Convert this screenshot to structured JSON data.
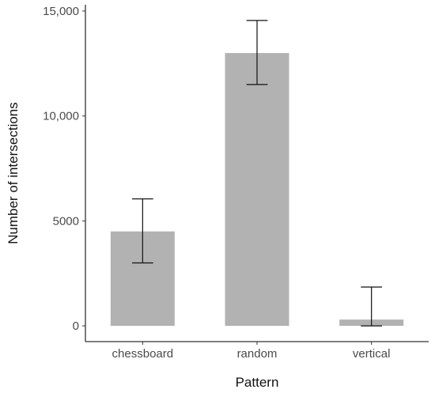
{
  "chart_data": {
    "type": "bar",
    "title": "",
    "xlabel": "Pattern",
    "ylabel": "Number of intersections",
    "categories": [
      "chessboard",
      "random",
      "vertical"
    ],
    "values": [
      4500,
      13000,
      300
    ],
    "error_low": [
      3000,
      11500,
      0
    ],
    "error_high": [
      6050,
      14550,
      1850
    ],
    "ylim": [
      -750,
      15300
    ],
    "yticks": [
      0,
      5000,
      10000,
      15000
    ],
    "ytick_labels": [
      "0",
      "5000",
      "10,000",
      "15,000"
    ],
    "grid": false,
    "legend": "none",
    "colors": {
      "bar": "#b2b2b2",
      "axis": "#333333",
      "errorbar": "#111111"
    }
  }
}
